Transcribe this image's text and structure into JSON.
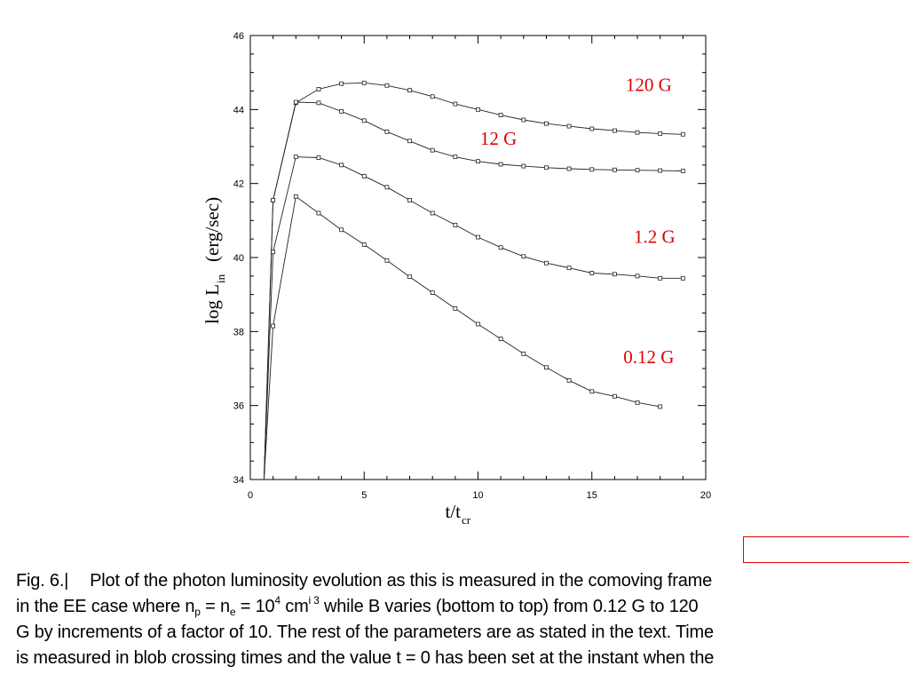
{
  "chart_data": {
    "type": "line",
    "title": "",
    "xlabel": "t/t",
    "xlabel_sub": "cr",
    "ylabel": "log L",
    "ylabel_sub": "in",
    "ylabel_unit": "(erg/sec)",
    "xlim": [
      0,
      20
    ],
    "ylim": [
      34,
      46
    ],
    "xticks": [
      0,
      5,
      10,
      15,
      20
    ],
    "xtick_labels": [
      "0",
      "5",
      "10",
      "15",
      "20"
    ],
    "yticks": [
      34,
      36,
      38,
      40,
      42,
      44,
      46
    ],
    "ytick_labels": [
      "34",
      "36",
      "38",
      "40",
      "42",
      "44",
      "46"
    ],
    "grid": false,
    "legend": "none",
    "series": [
      {
        "label": "120 G",
        "x": [
          0.6,
          1,
          2,
          3,
          4,
          5,
          6,
          7,
          8,
          9,
          10,
          11,
          12,
          13,
          14,
          15,
          16,
          17,
          18,
          19
        ],
        "y": [
          34.0,
          41.55,
          44.18,
          44.55,
          44.7,
          44.72,
          44.65,
          44.52,
          44.35,
          44.15,
          44.0,
          43.85,
          43.72,
          43.62,
          43.55,
          43.48,
          43.43,
          43.38,
          43.35,
          43.33
        ]
      },
      {
        "label": "12 G",
        "x": [
          0.6,
          1,
          2,
          3,
          4,
          5,
          6,
          7,
          8,
          9,
          10,
          11,
          12,
          13,
          14,
          15,
          16,
          17,
          18,
          19
        ],
        "y": [
          34.0,
          41.55,
          44.2,
          44.18,
          43.95,
          43.7,
          43.4,
          43.15,
          42.9,
          42.72,
          42.6,
          42.52,
          42.47,
          42.43,
          42.4,
          42.38,
          42.37,
          42.36,
          42.35,
          42.34
        ]
      },
      {
        "label": "1.2 G",
        "x": [
          0.6,
          1,
          2,
          3,
          4,
          5,
          6,
          7,
          8,
          9,
          10,
          11,
          12,
          13,
          14,
          15,
          16,
          17,
          18,
          19
        ],
        "y": [
          34.0,
          40.15,
          42.72,
          42.7,
          42.5,
          42.2,
          41.9,
          41.55,
          41.2,
          40.88,
          40.55,
          40.27,
          40.03,
          39.85,
          39.72,
          39.58,
          39.55,
          39.5,
          39.44,
          39.44
        ]
      },
      {
        "label": "0.12 G",
        "x": [
          0.6,
          1,
          2,
          3,
          4,
          5,
          6,
          7,
          8,
          9,
          10,
          11,
          12,
          13,
          14,
          15,
          16,
          17,
          18
        ],
        "y": [
          34.0,
          38.15,
          41.65,
          41.2,
          40.75,
          40.35,
          39.92,
          39.48,
          39.05,
          38.62,
          38.2,
          37.8,
          37.4,
          37.03,
          36.68,
          36.38,
          36.25,
          36.08,
          35.97
        ]
      }
    ]
  },
  "caption": {
    "line1_a": "Fig. 6.|",
    "line1_b": "Plot of the photon luminosity evolution as this is measured in the comoving frame",
    "line2_a": "in the EE case where n",
    "line2_sub1": "p",
    "line2_b": " = n",
    "line2_sub2": "e",
    "line2_c": " = 10",
    "line2_sup1": "4",
    "line2_d": " cm",
    "line2_sup2": "i 3",
    "line2_e": " while B varies (bottom to top) from 0.12 G to 120",
    "line3": "G by increments of a factor of 10. The rest of the parameters are as stated in the text. Time",
    "line4": "is measured in blob crossing times and the value t = 0 has been set at the instant when the"
  }
}
